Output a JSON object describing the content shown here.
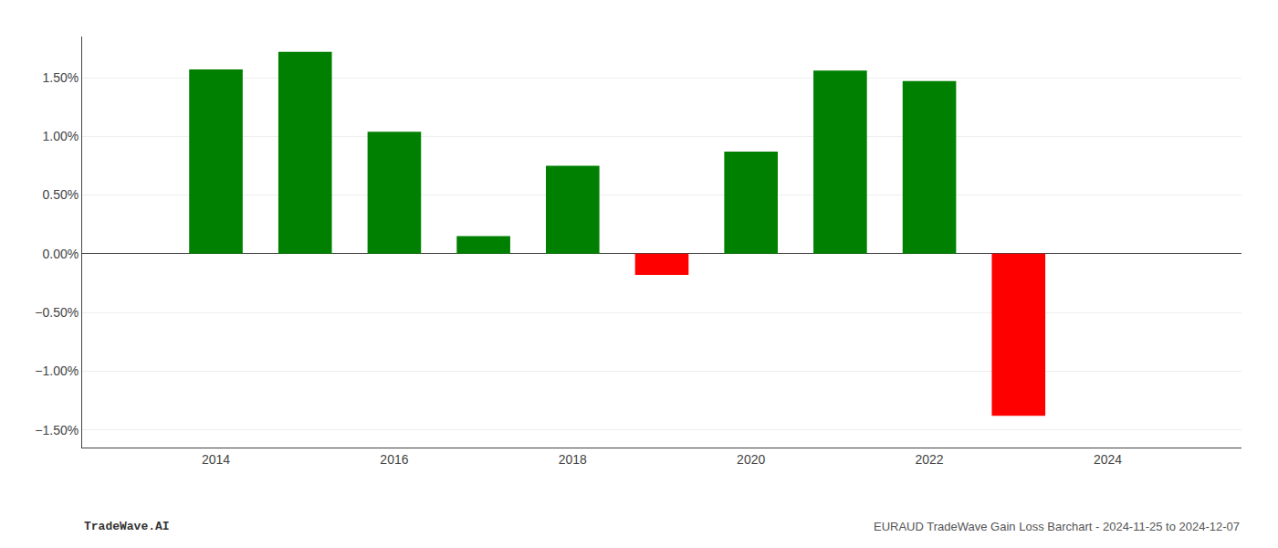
{
  "chart_data": {
    "type": "bar",
    "x": [
      2014,
      2015,
      2016,
      2017,
      2018,
      2019,
      2020,
      2021,
      2022,
      2023
    ],
    "values": [
      1.57,
      1.72,
      1.04,
      0.15,
      0.75,
      -0.18,
      0.87,
      1.56,
      1.47,
      -1.38
    ],
    "colors": [
      "#008000",
      "#008000",
      "#008000",
      "#008000",
      "#008000",
      "#ff0000",
      "#008000",
      "#008000",
      "#008000",
      "#ff0000"
    ],
    "xlim": [
      2012.5,
      2025.5
    ],
    "xticks": [
      2014,
      2016,
      2018,
      2020,
      2022,
      2024
    ],
    "ylim": [
      -1.65,
      1.85
    ],
    "yticks": [
      {
        "value": -1.5,
        "label": "−1.50%"
      },
      {
        "value": -1.0,
        "label": "−1.00%"
      },
      {
        "value": -0.5,
        "label": "−0.50%"
      },
      {
        "value": 0.0,
        "label": "0.00%"
      },
      {
        "value": 0.5,
        "label": "0.50%"
      },
      {
        "value": 1.0,
        "label": "1.00%"
      },
      {
        "value": 1.5,
        "label": "1.50%"
      }
    ],
    "grid": true,
    "annotations": [
      "TradeWave.AI",
      "EURAUD TradeWave Gain Loss Barchart - 2024-11-25 to 2024-12-07"
    ]
  }
}
